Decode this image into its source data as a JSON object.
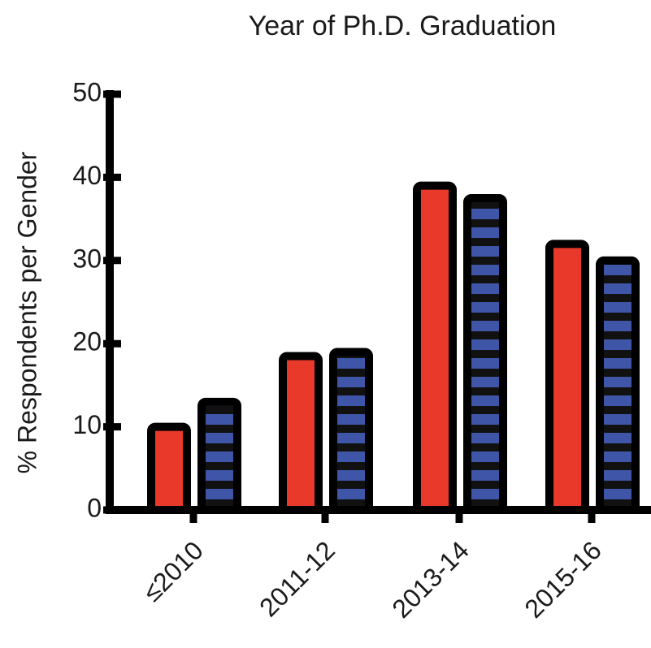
{
  "chart_data": {
    "type": "bar",
    "title": "Year of Ph.D. Graduation",
    "ylabel": "% Respondents per Gender",
    "categories": [
      "≤2010",
      "2011-12",
      "2013-14",
      "2015-16"
    ],
    "series": [
      {
        "color": "#e8392b",
        "values": [
          10,
          18.5,
          39,
          32
        ]
      },
      {
        "color": "#3f56a8",
        "values": [
          13,
          19,
          37.5,
          30
        ]
      }
    ],
    "ylim": [
      0,
      50
    ],
    "yticks": [
      0,
      10,
      20,
      30,
      40,
      50
    ]
  }
}
